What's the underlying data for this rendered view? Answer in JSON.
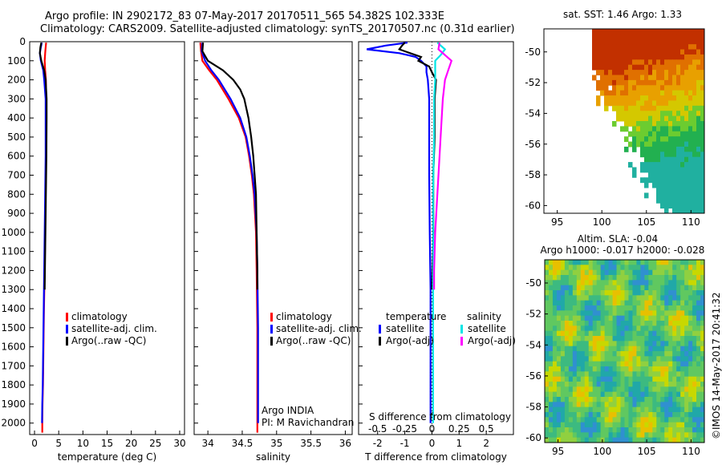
{
  "header": {
    "title_line1": "Argo profile: IN 2902172_83 07-May-2017 20170511_565 54.382S 102.333E",
    "title_line2": "Climatology: CARS2009. Satellite-adjusted climatology: synTS_20170507.nc (0.31d earlier)"
  },
  "colors": {
    "climatology": "#ff0000",
    "satellite": "#0000ff",
    "argo": "#000000",
    "sal_sat": "#00e5e5",
    "sal_argo": "#ff00ff"
  },
  "chart_data": [
    {
      "type": "line",
      "name": "temperature",
      "xlabel": "temperature (deg C)",
      "ylabel": "",
      "xlim": [
        -1,
        31
      ],
      "ylim": [
        2060,
        0
      ],
      "xticks": [
        "0",
        "5",
        "10",
        "15",
        "20",
        "25",
        "30"
      ],
      "xtick_values": [
        0,
        5,
        10,
        15,
        20,
        25,
        30
      ],
      "yticks": [
        "0",
        "100",
        "200",
        "300",
        "400",
        "500",
        "600",
        "700",
        "800",
        "900",
        "1000",
        "1100",
        "1200",
        "1300",
        "1400",
        "1500",
        "1600",
        "1700",
        "1800",
        "1900",
        "2000"
      ],
      "ytick_values": [
        0,
        100,
        200,
        300,
        400,
        500,
        600,
        700,
        800,
        900,
        1000,
        1100,
        1200,
        1300,
        1400,
        1500,
        1600,
        1700,
        1800,
        1900,
        2000
      ],
      "legend": [
        "climatology",
        "satellite-adj. clim.",
        "Argo(..raw -QC)"
      ],
      "series": [
        {
          "name": "climatology",
          "color_key": "climatology",
          "depth": [
            5,
            30,
            60,
            100,
            150,
            200,
            300,
            400,
            600,
            800,
            1000,
            1200,
            1400,
            1600,
            1800,
            1900,
            2000,
            2050
          ],
          "values": [
            2.4,
            2.3,
            2.2,
            2.1,
            2.2,
            2.35,
            2.4,
            2.4,
            2.35,
            2.3,
            2.2,
            2.1,
            1.95,
            1.85,
            1.75,
            1.65,
            1.6,
            1.6
          ]
        },
        {
          "name": "satellite-adj. clim.",
          "color_key": "satellite",
          "depth": [
            5,
            30,
            60,
            100,
            150,
            200,
            300,
            400,
            600,
            800,
            1000,
            1200,
            1400,
            1600,
            1800,
            1900,
            2000
          ],
          "values": [
            1.5,
            1.3,
            1.1,
            1.3,
            1.8,
            2.0,
            2.3,
            2.3,
            2.3,
            2.2,
            2.1,
            2.0,
            1.9,
            1.8,
            1.7,
            1.6,
            1.55
          ]
        },
        {
          "name": "Argo(..raw -QC)",
          "color_key": "argo",
          "depth": [
            5,
            30,
            60,
            100,
            150,
            200,
            300,
            400,
            600,
            800,
            1000,
            1200,
            1300
          ],
          "values": [
            1.4,
            1.2,
            1.1,
            1.4,
            2.0,
            2.3,
            2.5,
            2.5,
            2.45,
            2.35,
            2.25,
            2.15,
            2.1
          ]
        }
      ]
    },
    {
      "type": "line",
      "name": "salinity",
      "xlabel": "salinity",
      "xlim": [
        33.8,
        36.1
      ],
      "ylim": [
        2060,
        0
      ],
      "xticks": [
        "34",
        "34.5",
        "35",
        "35.5",
        "36"
      ],
      "xtick_values": [
        34,
        34.5,
        35,
        35.5,
        36
      ],
      "legend": [
        "climatology",
        "satellite-adj. clim.",
        "Argo(..raw -QC)"
      ],
      "annotation": [
        "Argo INDIA",
        "PI: M Ravichandran"
      ],
      "series": [
        {
          "name": "climatology",
          "color_key": "climatology",
          "depth": [
            5,
            50,
            100,
            150,
            200,
            300,
            400,
            500,
            600,
            700,
            800,
            1000,
            1200,
            1500,
            1800,
            2000,
            2050
          ],
          "values": [
            33.89,
            33.9,
            33.92,
            34.02,
            34.13,
            34.3,
            34.45,
            34.55,
            34.6,
            34.64,
            34.67,
            34.7,
            34.71,
            34.72,
            34.72,
            34.72,
            34.72
          ]
        },
        {
          "name": "satellite-adj. clim.",
          "color_key": "satellite",
          "depth": [
            5,
            50,
            100,
            150,
            200,
            300,
            400,
            500,
            600,
            700,
            800,
            1000,
            1200,
            1500,
            1800,
            2000
          ],
          "values": [
            33.92,
            33.91,
            33.96,
            34.05,
            34.16,
            34.33,
            34.47,
            34.56,
            34.61,
            34.65,
            34.68,
            34.71,
            34.72,
            34.73,
            34.73,
            34.73
          ]
        },
        {
          "name": "Argo(..raw -QC)",
          "color_key": "argo",
          "depth": [
            5,
            50,
            100,
            150,
            200,
            250,
            300,
            400,
            500,
            600,
            700,
            800,
            1000,
            1200,
            1300
          ],
          "values": [
            33.93,
            33.92,
            34.0,
            34.22,
            34.37,
            34.47,
            34.53,
            34.59,
            34.63,
            34.66,
            34.68,
            34.7,
            34.71,
            34.72,
            34.72
          ]
        }
      ]
    },
    {
      "type": "line",
      "name": "differences",
      "xlabel": "T difference from climatology",
      "xlabel_top": "S difference from climatology",
      "xlim": [
        -2.7,
        3.0
      ],
      "ylim": [
        2060,
        0
      ],
      "xticks": [
        "-2",
        "-1",
        "0",
        "1",
        "2"
      ],
      "xtick_values": [
        -2,
        -1,
        0,
        1,
        2
      ],
      "sticks": [
        "-0.5",
        "-0.25",
        "0",
        "0.25",
        "0.5"
      ],
      "stick_values": [
        -0.5,
        -0.25,
        0,
        0.25,
        0.5
      ],
      "legend_heads": [
        "temperature",
        "salinity"
      ],
      "legend": [
        "satellite",
        "Argo(-adj)",
        "satellite",
        "Argo(-adj)"
      ],
      "series": [
        {
          "name": "T satellite",
          "color_key": "satellite",
          "depth": [
            5,
            20,
            40,
            60,
            80,
            100,
            130,
            160,
            200,
            300,
            500,
            700,
            1000,
            1300,
            1600,
            1900,
            2000
          ],
          "values": [
            -0.9,
            -1.7,
            -2.4,
            -1.2,
            -0.6,
            -0.4,
            -0.2,
            -0.2,
            -0.15,
            -0.1,
            -0.1,
            -0.1,
            -0.08,
            -0.05,
            -0.05,
            -0.05,
            -0.05
          ]
        },
        {
          "name": "T Argo(-adj)",
          "color_key": "argo",
          "depth": [
            5,
            20,
            40,
            60,
            80,
            100,
            130,
            160,
            200,
            300,
            500,
            700,
            1000,
            1300
          ],
          "values": [
            -1.0,
            -1.1,
            -1.2,
            -0.8,
            -0.4,
            -0.5,
            -0.1,
            0.0,
            0.15,
            0.1,
            0.1,
            0.05,
            0.05,
            0.0
          ]
        },
        {
          "name": "S satellite",
          "color_key": "sal_sat",
          "depth": [
            5,
            40,
            70,
            100,
            150,
            200,
            300,
            500,
            800,
            1200,
            1600,
            2000
          ],
          "values": [
            0.05,
            0.12,
            0.08,
            0.03,
            0.03,
            0.03,
            0.02,
            0.02,
            0.01,
            0.01,
            0.01,
            0.01
          ]
        },
        {
          "name": "S Argo(-adj)",
          "color_key": "sal_argo",
          "depth": [
            5,
            40,
            70,
            100,
            150,
            200,
            300,
            400,
            600,
            800,
            1000,
            1200,
            1300
          ],
          "values": [
            0.07,
            0.06,
            0.12,
            0.18,
            0.15,
            0.12,
            0.1,
            0.09,
            0.07,
            0.05,
            0.03,
            0.02,
            0.02
          ]
        }
      ]
    },
    {
      "type": "heatmap",
      "name": "sst_map",
      "title": "sat. SST: 1.46 Argo: 1.33",
      "xlim": [
        93.5,
        111.5
      ],
      "ylim": [
        -60.5,
        -48.5
      ],
      "xticks": [
        "95",
        "100",
        "105",
        "110"
      ],
      "xtick_values": [
        95,
        100,
        105,
        110
      ],
      "yticks": [
        "-50",
        "-52",
        "-54",
        "-56",
        "-58",
        "-60"
      ],
      "ytick_values": [
        -50,
        -52,
        -54,
        -56,
        -58,
        -60
      ]
    },
    {
      "type": "heatmap",
      "name": "sla_map",
      "title1": "Altim. SLA: -0.04",
      "title2": "Argo h1000: -0.017 h2000: -0.028",
      "xlim": [
        93.5,
        111.5
      ],
      "ylim": [
        -60.3,
        -48.5
      ],
      "xticks": [
        "95",
        "100",
        "105",
        "110"
      ],
      "xtick_values": [
        95,
        100,
        105,
        110
      ],
      "yticks": [
        "-50",
        "-52",
        "-54",
        "-56",
        "-58",
        "-60"
      ],
      "ytick_values": [
        -50,
        -52,
        -54,
        -56,
        -58,
        -60
      ]
    }
  ],
  "footer": {
    "stamp": "©IMOS 14-May-2017 20:41:32"
  }
}
